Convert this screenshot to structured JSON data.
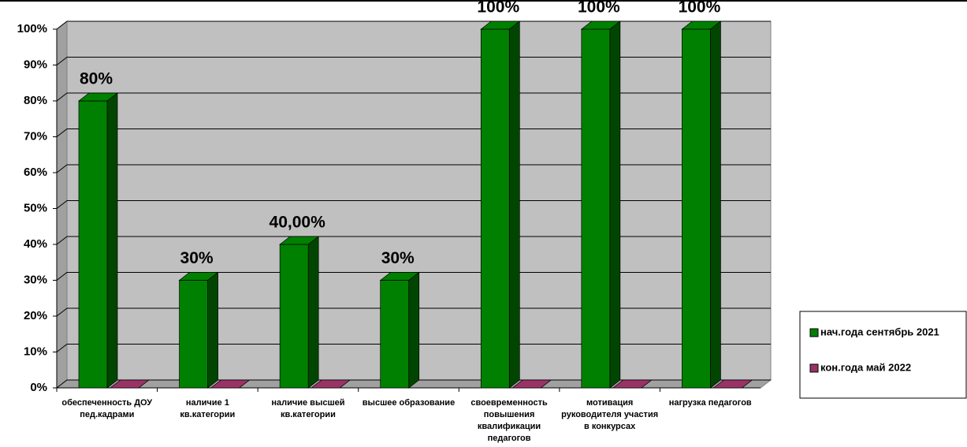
{
  "chart_data": {
    "type": "bar3d",
    "categories": [
      "обеспеченность ДОУ пед.кадрами",
      "наличие 1 кв.категории",
      "наличие высшей кв.категории",
      "высшее образование",
      "своевременность повышения квалификации педагогов",
      "мотивация руководителя участия в конкурсах",
      "нагрузка педагогов"
    ],
    "series": [
      {
        "name": "нач.года сентябрь 2021",
        "color": "#008000",
        "values": [
          80,
          30,
          40,
          30,
          100,
          100,
          100
        ],
        "value_labels": [
          "80%",
          "30%",
          "40,00%",
          "30%",
          "100%",
          "100%",
          "100%"
        ]
      },
      {
        "name": "кон.года май 2022",
        "color": "#993366",
        "values": [
          0,
          0,
          0,
          null,
          0,
          0,
          0
        ]
      }
    ],
    "ylim": [
      0,
      100
    ],
    "yticks": [
      {
        "value": 0,
        "label": "0%"
      },
      {
        "value": 10,
        "label": "10%"
      },
      {
        "value": 20,
        "label": "20%"
      },
      {
        "value": 30,
        "label": "30%"
      },
      {
        "value": 40,
        "label": "40%"
      },
      {
        "value": 50,
        "label": "50%"
      },
      {
        "value": 60,
        "label": "60%"
      },
      {
        "value": 70,
        "label": "70%"
      },
      {
        "value": 80,
        "label": "80%"
      },
      {
        "value": 90,
        "label": "90%"
      },
      {
        "value": 100,
        "label": "100%"
      }
    ],
    "grid": true,
    "legend": "right"
  }
}
